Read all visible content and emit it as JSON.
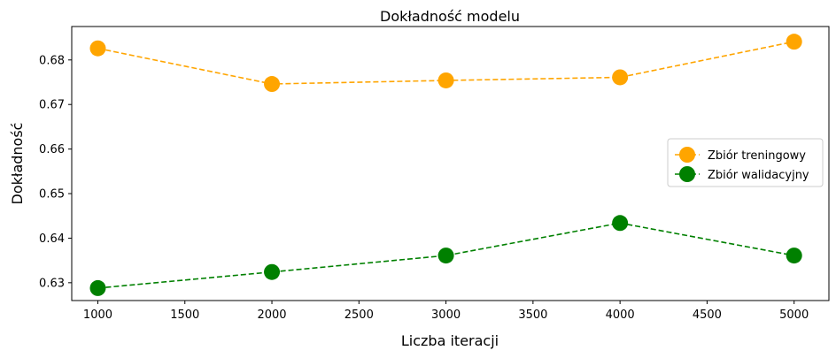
{
  "chart_data": {
    "type": "line",
    "title": "Dokładność modelu",
    "xlabel": "Liczba iteracji",
    "ylabel": "Dokładność",
    "x": [
      1000,
      2000,
      3000,
      4000,
      5000
    ],
    "xlim": [
      850,
      5200
    ],
    "ylim": [
      0.626,
      0.6875
    ],
    "xticks": [
      1000,
      1500,
      2000,
      2500,
      3000,
      3500,
      4000,
      4500,
      5000
    ],
    "yticks": [
      0.63,
      0.64,
      0.65,
      0.66,
      0.67,
      0.68
    ],
    "grid": false,
    "legend_position": "center-right",
    "series": [
      {
        "name": "Zbiór treningowy",
        "color": "#ffa500",
        "linestyle": "dashed",
        "marker": "circle",
        "values": [
          0.6826,
          0.6746,
          0.6754,
          0.6761,
          0.6841
        ]
      },
      {
        "name": "Zbiór walidacyjny",
        "color": "#008000",
        "linestyle": "dashed",
        "marker": "circle",
        "values": [
          0.6288,
          0.6324,
          0.6361,
          0.6434,
          0.6361
        ]
      }
    ]
  }
}
